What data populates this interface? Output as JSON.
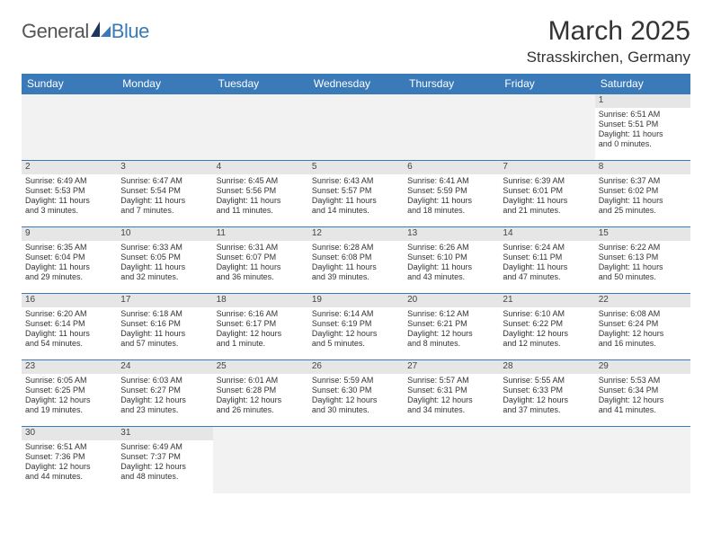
{
  "brand": {
    "general": "General",
    "blue": "Blue"
  },
  "title": "March 2025",
  "location": "Strasskirchen, Germany",
  "colors": {
    "header_bg": "#3a7ab8",
    "header_text": "#ffffff",
    "daynum_bg": "#e6e6e6",
    "empty_bg": "#f2f2f2",
    "border": "#3a7ab8",
    "text": "#333333"
  },
  "fonts": {
    "title_pt": 30,
    "location_pt": 17,
    "dayheader_pt": 12,
    "cell_pt": 9,
    "daynum_pt": 10
  },
  "day_headers": [
    "Sunday",
    "Monday",
    "Tuesday",
    "Wednesday",
    "Thursday",
    "Friday",
    "Saturday"
  ],
  "grid": [
    [
      null,
      null,
      null,
      null,
      null,
      null,
      {
        "n": "1",
        "sr": "Sunrise: 6:51 AM",
        "ss": "Sunset: 5:51 PM",
        "d1": "Daylight: 11 hours",
        "d2": "and 0 minutes."
      }
    ],
    [
      {
        "n": "2",
        "sr": "Sunrise: 6:49 AM",
        "ss": "Sunset: 5:53 PM",
        "d1": "Daylight: 11 hours",
        "d2": "and 3 minutes."
      },
      {
        "n": "3",
        "sr": "Sunrise: 6:47 AM",
        "ss": "Sunset: 5:54 PM",
        "d1": "Daylight: 11 hours",
        "d2": "and 7 minutes."
      },
      {
        "n": "4",
        "sr": "Sunrise: 6:45 AM",
        "ss": "Sunset: 5:56 PM",
        "d1": "Daylight: 11 hours",
        "d2": "and 11 minutes."
      },
      {
        "n": "5",
        "sr": "Sunrise: 6:43 AM",
        "ss": "Sunset: 5:57 PM",
        "d1": "Daylight: 11 hours",
        "d2": "and 14 minutes."
      },
      {
        "n": "6",
        "sr": "Sunrise: 6:41 AM",
        "ss": "Sunset: 5:59 PM",
        "d1": "Daylight: 11 hours",
        "d2": "and 18 minutes."
      },
      {
        "n": "7",
        "sr": "Sunrise: 6:39 AM",
        "ss": "Sunset: 6:01 PM",
        "d1": "Daylight: 11 hours",
        "d2": "and 21 minutes."
      },
      {
        "n": "8",
        "sr": "Sunrise: 6:37 AM",
        "ss": "Sunset: 6:02 PM",
        "d1": "Daylight: 11 hours",
        "d2": "and 25 minutes."
      }
    ],
    [
      {
        "n": "9",
        "sr": "Sunrise: 6:35 AM",
        "ss": "Sunset: 6:04 PM",
        "d1": "Daylight: 11 hours",
        "d2": "and 29 minutes."
      },
      {
        "n": "10",
        "sr": "Sunrise: 6:33 AM",
        "ss": "Sunset: 6:05 PM",
        "d1": "Daylight: 11 hours",
        "d2": "and 32 minutes."
      },
      {
        "n": "11",
        "sr": "Sunrise: 6:31 AM",
        "ss": "Sunset: 6:07 PM",
        "d1": "Daylight: 11 hours",
        "d2": "and 36 minutes."
      },
      {
        "n": "12",
        "sr": "Sunrise: 6:28 AM",
        "ss": "Sunset: 6:08 PM",
        "d1": "Daylight: 11 hours",
        "d2": "and 39 minutes."
      },
      {
        "n": "13",
        "sr": "Sunrise: 6:26 AM",
        "ss": "Sunset: 6:10 PM",
        "d1": "Daylight: 11 hours",
        "d2": "and 43 minutes."
      },
      {
        "n": "14",
        "sr": "Sunrise: 6:24 AM",
        "ss": "Sunset: 6:11 PM",
        "d1": "Daylight: 11 hours",
        "d2": "and 47 minutes."
      },
      {
        "n": "15",
        "sr": "Sunrise: 6:22 AM",
        "ss": "Sunset: 6:13 PM",
        "d1": "Daylight: 11 hours",
        "d2": "and 50 minutes."
      }
    ],
    [
      {
        "n": "16",
        "sr": "Sunrise: 6:20 AM",
        "ss": "Sunset: 6:14 PM",
        "d1": "Daylight: 11 hours",
        "d2": "and 54 minutes."
      },
      {
        "n": "17",
        "sr": "Sunrise: 6:18 AM",
        "ss": "Sunset: 6:16 PM",
        "d1": "Daylight: 11 hours",
        "d2": "and 57 minutes."
      },
      {
        "n": "18",
        "sr": "Sunrise: 6:16 AM",
        "ss": "Sunset: 6:17 PM",
        "d1": "Daylight: 12 hours",
        "d2": "and 1 minute."
      },
      {
        "n": "19",
        "sr": "Sunrise: 6:14 AM",
        "ss": "Sunset: 6:19 PM",
        "d1": "Daylight: 12 hours",
        "d2": "and 5 minutes."
      },
      {
        "n": "20",
        "sr": "Sunrise: 6:12 AM",
        "ss": "Sunset: 6:21 PM",
        "d1": "Daylight: 12 hours",
        "d2": "and 8 minutes."
      },
      {
        "n": "21",
        "sr": "Sunrise: 6:10 AM",
        "ss": "Sunset: 6:22 PM",
        "d1": "Daylight: 12 hours",
        "d2": "and 12 minutes."
      },
      {
        "n": "22",
        "sr": "Sunrise: 6:08 AM",
        "ss": "Sunset: 6:24 PM",
        "d1": "Daylight: 12 hours",
        "d2": "and 16 minutes."
      }
    ],
    [
      {
        "n": "23",
        "sr": "Sunrise: 6:05 AM",
        "ss": "Sunset: 6:25 PM",
        "d1": "Daylight: 12 hours",
        "d2": "and 19 minutes."
      },
      {
        "n": "24",
        "sr": "Sunrise: 6:03 AM",
        "ss": "Sunset: 6:27 PM",
        "d1": "Daylight: 12 hours",
        "d2": "and 23 minutes."
      },
      {
        "n": "25",
        "sr": "Sunrise: 6:01 AM",
        "ss": "Sunset: 6:28 PM",
        "d1": "Daylight: 12 hours",
        "d2": "and 26 minutes."
      },
      {
        "n": "26",
        "sr": "Sunrise: 5:59 AM",
        "ss": "Sunset: 6:30 PM",
        "d1": "Daylight: 12 hours",
        "d2": "and 30 minutes."
      },
      {
        "n": "27",
        "sr": "Sunrise: 5:57 AM",
        "ss": "Sunset: 6:31 PM",
        "d1": "Daylight: 12 hours",
        "d2": "and 34 minutes."
      },
      {
        "n": "28",
        "sr": "Sunrise: 5:55 AM",
        "ss": "Sunset: 6:33 PM",
        "d1": "Daylight: 12 hours",
        "d2": "and 37 minutes."
      },
      {
        "n": "29",
        "sr": "Sunrise: 5:53 AM",
        "ss": "Sunset: 6:34 PM",
        "d1": "Daylight: 12 hours",
        "d2": "and 41 minutes."
      }
    ],
    [
      {
        "n": "30",
        "sr": "Sunrise: 6:51 AM",
        "ss": "Sunset: 7:36 PM",
        "d1": "Daylight: 12 hours",
        "d2": "and 44 minutes."
      },
      {
        "n": "31",
        "sr": "Sunrise: 6:49 AM",
        "ss": "Sunset: 7:37 PM",
        "d1": "Daylight: 12 hours",
        "d2": "and 48 minutes."
      },
      null,
      null,
      null,
      null,
      null
    ]
  ]
}
